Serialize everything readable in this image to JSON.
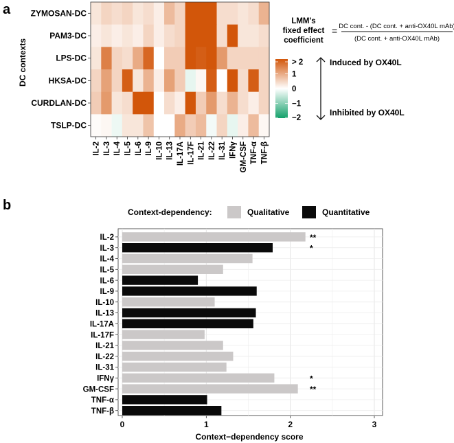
{
  "panel_a": {
    "label": "a",
    "y_axis_title": "DC contexts",
    "legend": {
      "title_lines": [
        "LMM's",
        "fixed effect",
        "coefficient"
      ],
      "equals": "=",
      "numerator": "DC cont. - (DC cont. + anti-OX40L mAb)",
      "denominator": "(DC cont. + anti-OX40L mAb)",
      "tick_labels": [
        "> 2",
        "1",
        "0",
        "−1",
        "−2"
      ],
      "tick_values": [
        2,
        1,
        0,
        -1,
        -2
      ],
      "induced_label": "Induced by OX40L",
      "inhibited_label": "Inhibited by OX40L"
    }
  },
  "panel_b": {
    "label": "b",
    "legend_title": "Context-dependency:",
    "legend_items": [
      {
        "label": "Qualitative",
        "color": "#cbc8c8"
      },
      {
        "label": "Quantitative",
        "color": "#0a0a0a"
      }
    ],
    "x_axis_title": "Context−dependency score"
  },
  "colors": {
    "high": "#d2560a",
    "mid": "#ffffff",
    "low": "#13a06a",
    "qualitative": "#cbc8c8",
    "quantitative": "#0a0a0a"
  },
  "chart_data": [
    {
      "type": "heatmap",
      "title": "",
      "ylabel": "DC contexts",
      "xlabel": "",
      "rows": [
        "ZYMOSAN-DC",
        "PAM3-DC",
        "LPS-DC",
        "HKSA-DC",
        "CURDLAN-DC",
        "TSLP-DC"
      ],
      "columns": [
        "IL-2",
        "IL-3",
        "IL-4",
        "IL-5",
        "IL-6",
        "IL-9",
        "IL-10",
        "IL-13",
        "IL-17A",
        "IL-17F",
        "IL-21",
        "IL-22",
        "IL-31",
        "IFNγ",
        "GM-CSF",
        "TNF-α",
        "TNF-β"
      ],
      "color_range": [
        -2,
        2
      ],
      "values": [
        [
          0.3,
          0.5,
          0.4,
          0.5,
          0.3,
          0.4,
          0.2,
          0.8,
          0.5,
          2.0,
          2.0,
          2.0,
          0.4,
          0.4,
          0.3,
          0.4,
          0.9
        ],
        [
          0.2,
          0.3,
          0.2,
          0.3,
          0.2,
          0.5,
          0.2,
          0.4,
          0.5,
          2.0,
          2.0,
          2.0,
          0.4,
          2.0,
          0.3,
          0.3,
          0.4
        ],
        [
          0.3,
          1.5,
          0.5,
          0.4,
          1.0,
          1.8,
          0.0,
          0.6,
          0.6,
          2.0,
          1.9,
          2.2,
          1.2,
          0.5,
          0.5,
          0.5,
          0.5
        ],
        [
          0.5,
          1.1,
          0.5,
          1.9,
          0.3,
          0.9,
          0.2,
          1.1,
          0.6,
          -0.2,
          0.1,
          1.9,
          0.0,
          2.0,
          0.4,
          1.9,
          0.5
        ],
        [
          0.6,
          1.2,
          0.3,
          0.4,
          2.0,
          2.0,
          0.0,
          0.4,
          0.2,
          2.0,
          0.6,
          1.2,
          0.4,
          0.9,
          0.4,
          0.2,
          0.5
        ],
        [
          0.05,
          0.1,
          -0.15,
          0.3,
          0.3,
          0.7,
          0.0,
          0.0,
          1.0,
          0.6,
          0.8,
          -0.1,
          0.5,
          -0.2,
          0.2,
          0.8,
          0.1
        ]
      ]
    },
    {
      "type": "bar",
      "orientation": "horizontal",
      "title": "",
      "xlabel": "Context−dependency score",
      "ylabel": "",
      "xlim": [
        0,
        3
      ],
      "x_ticks": [
        0,
        1,
        2,
        3
      ],
      "categories": [
        "IL-2",
        "IL-3",
        "IL-4",
        "IL-5",
        "IL-6",
        "IL-9",
        "IL-10",
        "IL-13",
        "IL-17A",
        "IL-17F",
        "IL-21",
        "IL-22",
        "IL-31",
        "IFNγ",
        "GM-CSF",
        "TNF-α",
        "TNF-β"
      ],
      "values": [
        2.18,
        1.79,
        1.55,
        1.2,
        0.9,
        1.6,
        1.1,
        1.59,
        1.56,
        0.98,
        1.2,
        1.32,
        1.24,
        1.81,
        2.09,
        1.01,
        1.18
      ],
      "types": [
        "Qualitative",
        "Quantitative",
        "Qualitative",
        "Qualitative",
        "Quantitative",
        "Quantitative",
        "Qualitative",
        "Quantitative",
        "Quantitative",
        "Qualitative",
        "Qualitative",
        "Qualitative",
        "Qualitative",
        "Qualitative",
        "Qualitative",
        "Quantitative",
        "Quantitative"
      ],
      "annotations": [
        "**",
        "*",
        "",
        "",
        "",
        "",
        "",
        "",
        "",
        "",
        "",
        "",
        "",
        "*",
        "**",
        "",
        ""
      ]
    }
  ]
}
